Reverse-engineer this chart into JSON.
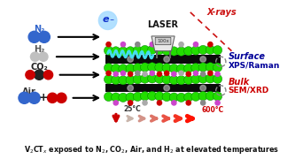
{
  "bg_color": "#ffffff",
  "laser_label": "LASER",
  "xrays_label": "X-rays",
  "surface_label": "Surface",
  "surface_sub": "XPS/Raman",
  "bulk_label": "Bulk",
  "bulk_sub": "SEM/XRD",
  "temp_start": "25°C",
  "temp_end": "600°C",
  "gas_labels": [
    "N₂",
    "H₂",
    "CO₂",
    "Air"
  ],
  "green_color": "#22dd00",
  "dark_color": "#111111",
  "red_color": "#cc0000",
  "blue_color": "#3366cc",
  "purple_color": "#cc44cc",
  "laser_beam_color": "#44ddee",
  "xray_color": "#cc1111",
  "caption": "V₂CTₓ exposed to N₂, CO₂, Air, and H₂ at elevated temperatures"
}
